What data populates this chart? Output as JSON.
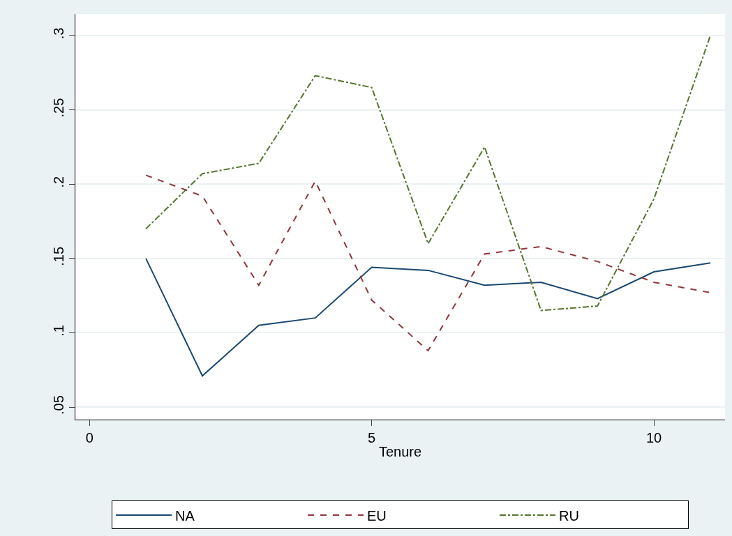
{
  "chart_data": {
    "type": "line",
    "xlabel": "Tenure",
    "x": [
      1,
      2,
      3,
      4,
      5,
      6,
      7,
      8,
      9,
      10,
      11
    ],
    "xlim": [
      -0.25,
      11.26
    ],
    "xticks": [
      0,
      5,
      10
    ],
    "ylim": [
      0.0416,
      0.3145
    ],
    "yticks": [
      {
        "value": 0.05,
        "label": ".05"
      },
      {
        "value": 0.1,
        "label": ".1"
      },
      {
        "value": 0.15,
        "label": ".15"
      },
      {
        "value": 0.2,
        "label": ".2"
      },
      {
        "value": 0.25,
        "label": ".25"
      },
      {
        "value": 0.3,
        "label": ".3"
      }
    ],
    "grid": "y",
    "legend": "bottom",
    "marker": "none",
    "series": [
      {
        "name": "NA",
        "color": "#1a476f",
        "line_style": "solid",
        "values": [
          0.15,
          0.071,
          0.105,
          0.11,
          0.144,
          0.142,
          0.132,
          0.134,
          0.123,
          0.141,
          0.147
        ]
      },
      {
        "name": "EU",
        "color": "#90353b",
        "line_style": "dashed",
        "values": [
          0.206,
          0.192,
          0.132,
          0.202,
          0.122,
          0.088,
          0.153,
          0.158,
          0.148,
          0.134,
          0.127
        ]
      },
      {
        "name": "RU",
        "color": "#55752f",
        "line_style": "dashdot",
        "values": [
          0.17,
          0.207,
          0.214,
          0.273,
          0.265,
          0.16,
          0.225,
          0.115,
          0.118,
          0.19,
          0.3
        ]
      }
    ]
  }
}
